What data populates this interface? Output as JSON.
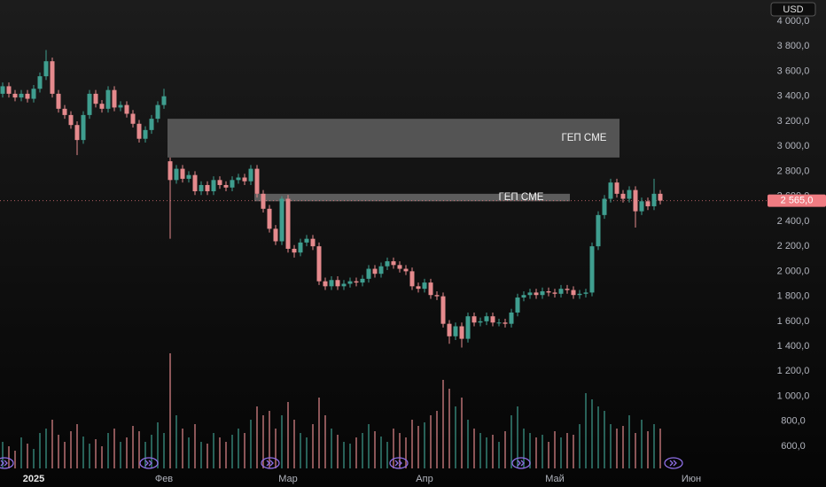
{
  "chart_data": {
    "type": "candlestick",
    "currency": "USD",
    "up_color": "#3f9e8f",
    "down_color": "#e58a8d",
    "grid": false,
    "ylim": [
      402,
      4170
    ],
    "yticks": [
      {
        "value": 600,
        "label": "600,0"
      },
      {
        "value": 800,
        "label": "800,0"
      },
      {
        "value": 1000,
        "label": "1 000,0"
      },
      {
        "value": 1200,
        "label": "1 200,0"
      },
      {
        "value": 1400,
        "label": "1 400,0"
      },
      {
        "value": 1600,
        "label": "1 600,0"
      },
      {
        "value": 1800,
        "label": "1 800,0"
      },
      {
        "value": 2000,
        "label": "2 000,0"
      },
      {
        "value": 2200,
        "label": "2 200,0"
      },
      {
        "value": 2400,
        "label": "2 400,0"
      },
      {
        "value": 2600,
        "label": "2 600,0"
      },
      {
        "value": 2800,
        "label": "2 800,0"
      },
      {
        "value": 3000,
        "label": "3 000,0"
      },
      {
        "value": 3200,
        "label": "3 200,0"
      },
      {
        "value": 3400,
        "label": "3 400,0"
      },
      {
        "value": 3600,
        "label": "3 600,0"
      },
      {
        "value": 3800,
        "label": "3 800,0"
      },
      {
        "value": 4000,
        "label": "4 000,0"
      }
    ],
    "categories": [
      null,
      null,
      null,
      null,
      null,
      "2025",
      null,
      null,
      null,
      null,
      null,
      null,
      null,
      null,
      null,
      null,
      null,
      null,
      null,
      null,
      null,
      null,
      null,
      null,
      null,
      null,
      "Фев",
      null,
      null,
      null,
      null,
      null,
      null,
      null,
      null,
      null,
      null,
      null,
      null,
      null,
      null,
      null,
      null,
      null,
      null,
      null,
      "Мар",
      null,
      null,
      null,
      null,
      null,
      null,
      null,
      null,
      null,
      null,
      null,
      null,
      null,
      null,
      null,
      null,
      null,
      null,
      null,
      null,
      null,
      "Апр",
      null,
      null,
      null,
      null,
      null,
      null,
      null,
      null,
      null,
      null,
      null,
      null,
      null,
      null,
      null,
      null,
      null,
      null,
      null,
      null,
      "Май",
      null,
      null,
      null,
      null,
      null,
      null,
      null,
      null,
      null,
      null,
      null,
      null,
      null,
      null,
      null,
      null,
      null,
      null,
      null,
      null,
      null,
      "Июн"
    ],
    "open": [
      3420,
      3480,
      3420,
      3390,
      3420,
      3380,
      3460,
      3560,
      3680,
      3420,
      3300,
      3250,
      3170,
      3050,
      3250,
      3420,
      3340,
      3300,
      3450,
      3310,
      3330,
      3260,
      3180,
      3060,
      3130,
      3220,
      3330,
      2880,
      2730,
      2820,
      2740,
      2770,
      2640,
      2690,
      2640,
      2730,
      2690,
      2670,
      2730,
      2750,
      2720,
      2820,
      2620,
      2500,
      2340,
      2240,
      2580,
      2180,
      2150,
      2230,
      2260,
      2200,
      1920,
      1880,
      1930,
      1880,
      1900,
      1920,
      1910,
      1940,
      2020,
      1980,
      2040,
      2080,
      2050,
      2020,
      2000,
      1880,
      1860,
      1910,
      1810,
      1800,
      1580,
      1480,
      1560,
      1460,
      1640,
      1590,
      1600,
      1640,
      1590,
      1590,
      1580,
      1670,
      1790,
      1810,
      1830,
      1810,
      1840,
      1830,
      1820,
      1860,
      1850,
      1810,
      1820,
      1830,
      2200,
      2450,
      2580,
      2710,
      2620,
      2580,
      2650,
      2480,
      2560,
      2520,
      2620,
      null,
      null,
      null,
      null,
      null
    ],
    "high": [
      3510,
      3510,
      3450,
      3450,
      3450,
      3490,
      3590,
      3770,
      3710,
      3450,
      3330,
      3280,
      3200,
      3280,
      3450,
      3450,
      3370,
      3480,
      3480,
      3360,
      3360,
      3290,
      3210,
      3160,
      3250,
      3360,
      3460,
      2910,
      2850,
      2850,
      2800,
      2800,
      2720,
      2720,
      2760,
      2760,
      2720,
      2760,
      2780,
      2780,
      2850,
      2850,
      2650,
      2530,
      2370,
      2600,
      2610,
      2210,
      2260,
      2290,
      2290,
      2230,
      1950,
      1960,
      1960,
      1930,
      1950,
      1950,
      1970,
      2050,
      2050,
      2070,
      2110,
      2110,
      2080,
      2050,
      2030,
      1910,
      1940,
      1940,
      1840,
      1830,
      1610,
      1590,
      1590,
      1670,
      1670,
      1630,
      1670,
      1670,
      1620,
      1620,
      1700,
      1820,
      1840,
      1860,
      1860,
      1870,
      1870,
      1860,
      1890,
      1890,
      1880,
      1850,
      1860,
      2230,
      2480,
      2610,
      2740,
      2740,
      2650,
      2680,
      2680,
      2590,
      2590,
      2740,
      2650,
      null,
      null,
      null,
      null,
      null
    ],
    "low": [
      3390,
      3390,
      3360,
      3360,
      3350,
      3350,
      3430,
      3530,
      3390,
      3270,
      3220,
      3140,
      2930,
      3020,
      3220,
      3310,
      3270,
      3270,
      3280,
      3280,
      3230,
      3150,
      3030,
      3030,
      3100,
      3190,
      3300,
      2260,
      2700,
      2710,
      2710,
      2610,
      2610,
      2610,
      2610,
      2660,
      2640,
      2640,
      2700,
      2690,
      2690,
      2590,
      2470,
      2310,
      2210,
      2210,
      2150,
      2110,
      2120,
      2200,
      2170,
      1890,
      1850,
      1850,
      1850,
      1850,
      1870,
      1880,
      1880,
      1910,
      1950,
      1950,
      2010,
      2020,
      1990,
      1970,
      1850,
      1830,
      1830,
      1780,
      1770,
      1550,
      1420,
      1450,
      1390,
      1430,
      1560,
      1560,
      1570,
      1560,
      1560,
      1550,
      1550,
      1640,
      1760,
      1780,
      1780,
      1780,
      1800,
      1790,
      1790,
      1820,
      1780,
      1780,
      1790,
      1800,
      2170,
      2420,
      2550,
      2590,
      2550,
      2550,
      2350,
      2450,
      2490,
      2490,
      2535,
      null,
      null,
      null,
      null,
      null
    ],
    "close": [
      3480,
      3420,
      3390,
      3420,
      3380,
      3460,
      3560,
      3680,
      3420,
      3300,
      3250,
      3170,
      3050,
      3250,
      3420,
      3340,
      3300,
      3450,
      3310,
      3330,
      3260,
      3180,
      3060,
      3130,
      3220,
      3330,
      3400,
      2730,
      2820,
      2740,
      2770,
      2640,
      2690,
      2640,
      2730,
      2690,
      2670,
      2730,
      2750,
      2720,
      2820,
      2620,
      2500,
      2340,
      2240,
      2580,
      2180,
      2150,
      2230,
      2260,
      2200,
      1920,
      1880,
      1930,
      1880,
      1900,
      1920,
      1910,
      1940,
      2020,
      1980,
      2040,
      2080,
      2050,
      2020,
      2000,
      1880,
      1860,
      1910,
      1810,
      1800,
      1580,
      1480,
      1560,
      1460,
      1640,
      1590,
      1600,
      1640,
      1590,
      1590,
      1580,
      1670,
      1790,
      1810,
      1830,
      1810,
      1840,
      1830,
      1820,
      1860,
      1850,
      1810,
      1820,
      1830,
      2200,
      2450,
      2580,
      2710,
      2620,
      2580,
      2650,
      2480,
      2560,
      2520,
      2620,
      2565,
      null,
      null,
      null,
      null,
      null
    ],
    "volume": [
      30,
      25,
      20,
      35,
      28,
      22,
      40,
      45,
      55,
      38,
      30,
      42,
      50,
      36,
      28,
      33,
      25,
      40,
      45,
      30,
      35,
      48,
      42,
      30,
      38,
      52,
      40,
      130,
      60,
      45,
      35,
      50,
      30,
      28,
      40,
      35,
      30,
      38,
      45,
      40,
      55,
      70,
      60,
      65,
      45,
      60,
      75,
      55,
      40,
      35,
      50,
      80,
      60,
      45,
      38,
      30,
      28,
      35,
      40,
      50,
      42,
      36,
      30,
      45,
      40,
      35,
      55,
      48,
      52,
      60,
      65,
      100,
      90,
      70,
      80,
      55,
      45,
      40,
      35,
      38,
      30,
      42,
      60,
      70,
      45,
      40,
      35,
      38,
      30,
      42,
      35,
      40,
      38,
      50,
      85,
      78,
      70,
      65,
      50,
      45,
      48,
      60,
      40,
      55,
      42,
      50,
      45,
      null,
      null,
      null,
      null,
      null
    ],
    "gaps": [
      {
        "label": "ГЕП CME",
        "low": 2910,
        "high": 3220,
        "from": 27,
        "to": 99,
        "color": "#5f5f5f"
      },
      {
        "label": "ГЕП CME",
        "low": 2560,
        "high": 2620,
        "from": 41,
        "to": 91,
        "color": "#6a6a6a"
      }
    ],
    "last_price": {
      "value": 2565,
      "label": "2 565,0",
      "color": "#f07c82"
    }
  }
}
